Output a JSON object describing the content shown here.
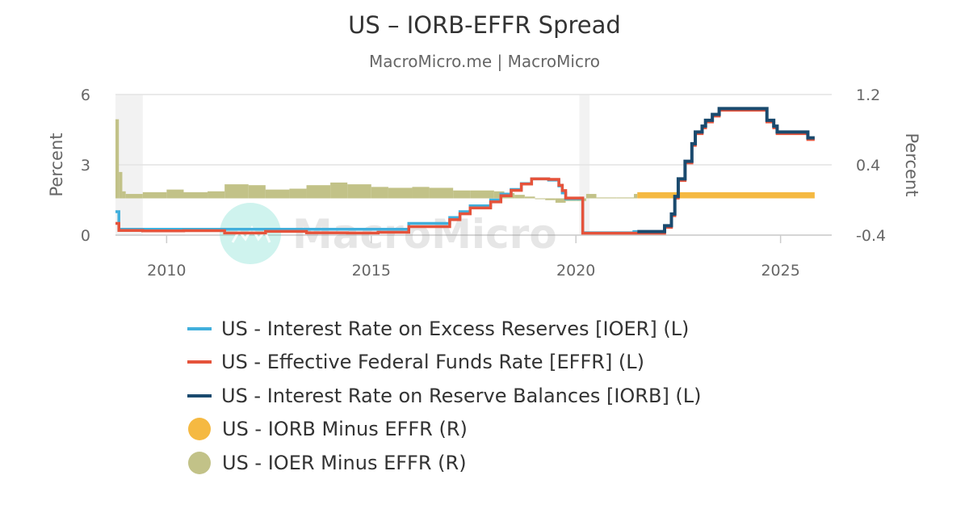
{
  "chart_data": {
    "type": "line",
    "title": "US – IORB-EFFR Spread",
    "subtitle": "MacroMicro.me | MacroMicro",
    "watermark": "MacroMicro",
    "left_axis": {
      "label": "Percent",
      "range": [
        0,
        6
      ],
      "ticks": [
        "0",
        "3",
        "6"
      ]
    },
    "right_axis": {
      "label": "Percent",
      "range": [
        -0.4,
        1.2
      ],
      "ticks": [
        "-0.4",
        "0.4",
        "1.2"
      ]
    },
    "x_axis": {
      "range": [
        "2008-10",
        "2026-04"
      ],
      "ticks": [
        "2010",
        "2015",
        "2020",
        "2025"
      ]
    },
    "grid": true,
    "legend_placement": "bottom",
    "recession_bands": [
      [
        "2008-10",
        "2009-06"
      ],
      [
        "2020-02",
        "2020-05"
      ]
    ],
    "series": [
      {
        "name": "US - Interest Rate on Excess Reserves [IOER] (L)",
        "axis": "left",
        "kind": "step-line",
        "color": "#41afdc",
        "points": [
          [
            "2008-10",
            1.0
          ],
          [
            "2008-11",
            0.25
          ],
          [
            "2015-12",
            0.5
          ],
          [
            "2016-12",
            0.75
          ],
          [
            "2017-03",
            1.0
          ],
          [
            "2017-06",
            1.25
          ],
          [
            "2017-12",
            1.5
          ],
          [
            "2018-03",
            1.75
          ],
          [
            "2018-06",
            1.95
          ],
          [
            "2018-09",
            2.2
          ],
          [
            "2018-12",
            2.4
          ],
          [
            "2019-05",
            2.35
          ],
          [
            "2019-08",
            2.1
          ],
          [
            "2019-09",
            1.8
          ],
          [
            "2019-10",
            1.55
          ],
          [
            "2020-03",
            0.1
          ],
          [
            "2021-06",
            0.15
          ],
          [
            "2021-07",
            0.15
          ]
        ]
      },
      {
        "name": "US - Effective Federal Funds Rate [EFFR] (L)",
        "axis": "left",
        "kind": "step-line",
        "color": "#e5533b",
        "points": [
          [
            "2008-10",
            0.5
          ],
          [
            "2008-11",
            0.2
          ],
          [
            "2009-06",
            0.18
          ],
          [
            "2010-06",
            0.19
          ],
          [
            "2011-06",
            0.09
          ],
          [
            "2012-06",
            0.16
          ],
          [
            "2013-06",
            0.1
          ],
          [
            "2014-06",
            0.09
          ],
          [
            "2015-03",
            0.12
          ],
          [
            "2015-12",
            0.36
          ],
          [
            "2016-12",
            0.66
          ],
          [
            "2017-03",
            0.91
          ],
          [
            "2017-06",
            1.16
          ],
          [
            "2017-12",
            1.42
          ],
          [
            "2018-03",
            1.68
          ],
          [
            "2018-06",
            1.91
          ],
          [
            "2018-09",
            2.18
          ],
          [
            "2018-12",
            2.4
          ],
          [
            "2019-05",
            2.38
          ],
          [
            "2019-08",
            2.13
          ],
          [
            "2019-09",
            1.9
          ],
          [
            "2019-10",
            1.58
          ],
          [
            "2020-03",
            0.08
          ],
          [
            "2021-06",
            0.08
          ],
          [
            "2022-03",
            0.33
          ],
          [
            "2022-05",
            0.83
          ],
          [
            "2022-06",
            1.58
          ],
          [
            "2022-07",
            2.33
          ],
          [
            "2022-09",
            3.08
          ],
          [
            "2022-11",
            3.83
          ],
          [
            "2022-12",
            4.33
          ],
          [
            "2023-02",
            4.58
          ],
          [
            "2023-03",
            4.83
          ],
          [
            "2023-05",
            5.08
          ],
          [
            "2023-07",
            5.33
          ],
          [
            "2024-09",
            4.83
          ],
          [
            "2024-11",
            4.58
          ],
          [
            "2024-12",
            4.33
          ],
          [
            "2025-09",
            4.08
          ],
          [
            "2025-11",
            4.08
          ]
        ]
      },
      {
        "name": "US - Interest Rate on Reserve Balances [IORB] (L)",
        "axis": "left",
        "kind": "step-line",
        "color": "#1a4a6e",
        "points": [
          [
            "2021-07",
            0.15
          ],
          [
            "2022-03",
            0.4
          ],
          [
            "2022-05",
            0.9
          ],
          [
            "2022-06",
            1.65
          ],
          [
            "2022-07",
            2.4
          ],
          [
            "2022-09",
            3.15
          ],
          [
            "2022-11",
            3.9
          ],
          [
            "2022-12",
            4.4
          ],
          [
            "2023-02",
            4.65
          ],
          [
            "2023-03",
            4.9
          ],
          [
            "2023-05",
            5.15
          ],
          [
            "2023-07",
            5.4
          ],
          [
            "2024-09",
            4.9
          ],
          [
            "2024-11",
            4.65
          ],
          [
            "2024-12",
            4.4
          ],
          [
            "2025-09",
            4.15
          ],
          [
            "2025-11",
            4.15
          ]
        ]
      },
      {
        "name": "US - IORB Minus EFFR (R)",
        "axis": "right",
        "kind": "bar",
        "color": "#f5b942",
        "points": [
          [
            "2021-07",
            0.07
          ],
          [
            "2025-11",
            0.07
          ]
        ]
      },
      {
        "name": "US - IOER Minus EFFR (R)",
        "axis": "right",
        "kind": "bar",
        "color": "#c2c288",
        "points": [
          [
            "2008-10",
            0.9
          ],
          [
            "2008-11",
            0.3
          ],
          [
            "2008-12",
            0.08
          ],
          [
            "2009-01",
            0.05
          ],
          [
            "2009-06",
            0.07
          ],
          [
            "2010-01",
            0.1
          ],
          [
            "2010-06",
            0.07
          ],
          [
            "2011-01",
            0.08
          ],
          [
            "2011-06",
            0.16
          ],
          [
            "2012-01",
            0.15
          ],
          [
            "2012-06",
            0.1
          ],
          [
            "2013-01",
            0.11
          ],
          [
            "2013-06",
            0.15
          ],
          [
            "2014-01",
            0.18
          ],
          [
            "2014-06",
            0.16
          ],
          [
            "2015-01",
            0.13
          ],
          [
            "2015-06",
            0.12
          ],
          [
            "2016-01",
            0.13
          ],
          [
            "2016-06",
            0.12
          ],
          [
            "2017-01",
            0.09
          ],
          [
            "2017-06",
            0.09
          ],
          [
            "2018-01",
            0.08
          ],
          [
            "2018-04",
            0.06
          ],
          [
            "2018-07",
            0.04
          ],
          [
            "2018-10",
            0.02
          ],
          [
            "2019-01",
            0.0
          ],
          [
            "2019-04",
            -0.02
          ],
          [
            "2019-07",
            -0.05
          ],
          [
            "2019-10",
            -0.03
          ],
          [
            "2020-01",
            -0.03
          ],
          [
            "2020-04",
            0.05
          ],
          [
            "2020-07",
            0.01
          ],
          [
            "2021-01",
            0.01
          ],
          [
            "2021-06",
            0.05
          ],
          [
            "2021-07",
            0.05
          ]
        ]
      }
    ]
  }
}
